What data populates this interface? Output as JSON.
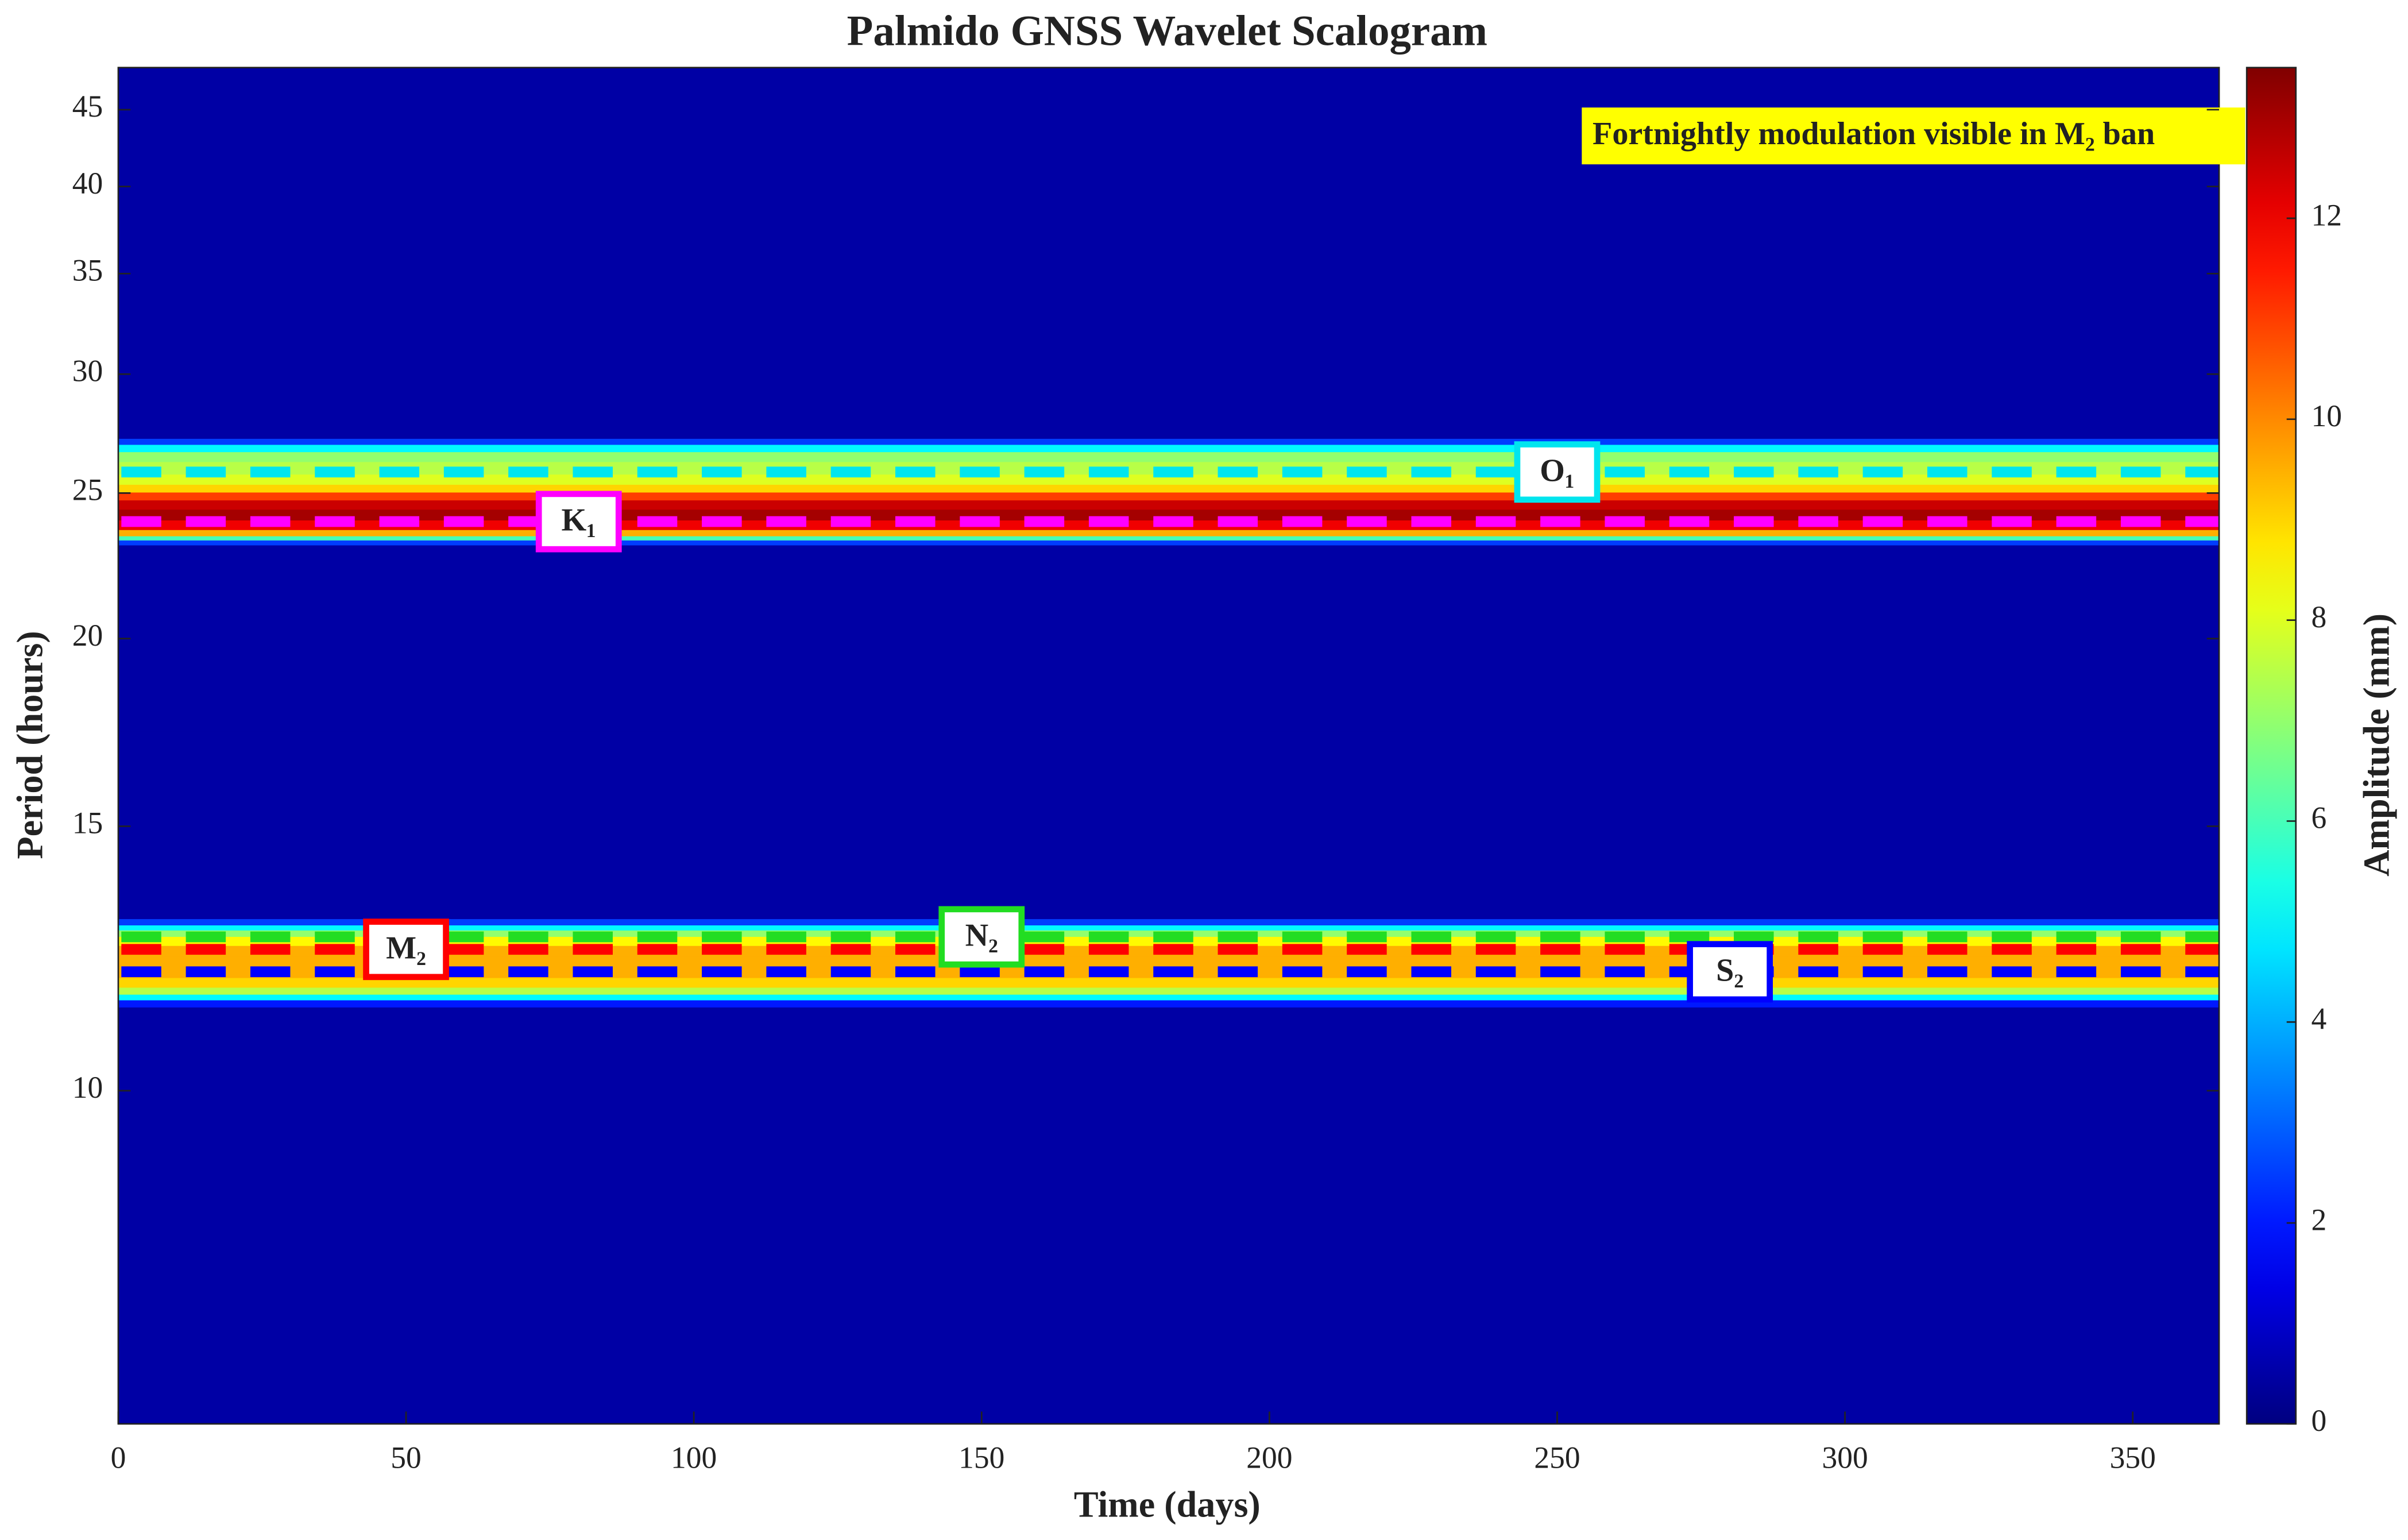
{
  "chart_data": {
    "type": "scalogram",
    "title": "Palmido GNSS Wavelet Scalogram",
    "xlabel": "Time (days)",
    "ylabel": "Period (hours)",
    "colorbar_label": "Amplitude (mm)",
    "annotation": "Fortnightly modulation visible in M₂ ban",
    "xlim": [
      0,
      365
    ],
    "xticks": [
      0,
      50,
      100,
      150,
      200,
      250,
      300,
      350
    ],
    "ylim": [
      6,
      48
    ],
    "yticks": [
      10,
      15,
      20,
      25,
      30,
      35,
      40,
      45
    ],
    "log_y": true,
    "colormap": "jet",
    "clim": [
      0,
      13.5
    ],
    "cticks": [
      0,
      2,
      4,
      6,
      8,
      10,
      12
    ],
    "period": [
      6,
      11.3,
      11.45,
      11.55,
      11.65,
      11.8,
      12.0,
      12.2,
      12.4,
      12.6,
      12.75,
      12.85,
      12.95,
      13.1,
      23.0,
      23.2,
      23.35,
      23.5,
      23.8,
      24.2,
      24.6,
      24.9,
      25.2,
      25.5,
      26.0,
      26.5,
      26.8,
      27.1,
      27.3,
      48
    ],
    "amplitude": [
      0.5,
      0.5,
      2,
      5,
      7.5,
      9,
      9.5,
      9.5,
      9.5,
      8.5,
      7,
      5,
      2.5,
      0.5,
      0.5,
      2.5,
      6,
      9.5,
      12,
      13,
      12.5,
      11,
      9,
      8,
      7.5,
      7,
      5,
      2.5,
      0.5,
      0.5
    ],
    "constituents": [
      {
        "name": "O₁",
        "color": "#00e5ee",
        "period": 25.82
      },
      {
        "name": "K₁",
        "color": "#ff00ff",
        "period": 23.93
      },
      {
        "name": "N₂",
        "color": "#22dd22",
        "period": 12.66
      },
      {
        "name": "M₂",
        "color": "#ff0000",
        "period": 12.42
      },
      {
        "name": "S₂",
        "color": "#0000ff",
        "period": 12.0
      }
    ]
  }
}
